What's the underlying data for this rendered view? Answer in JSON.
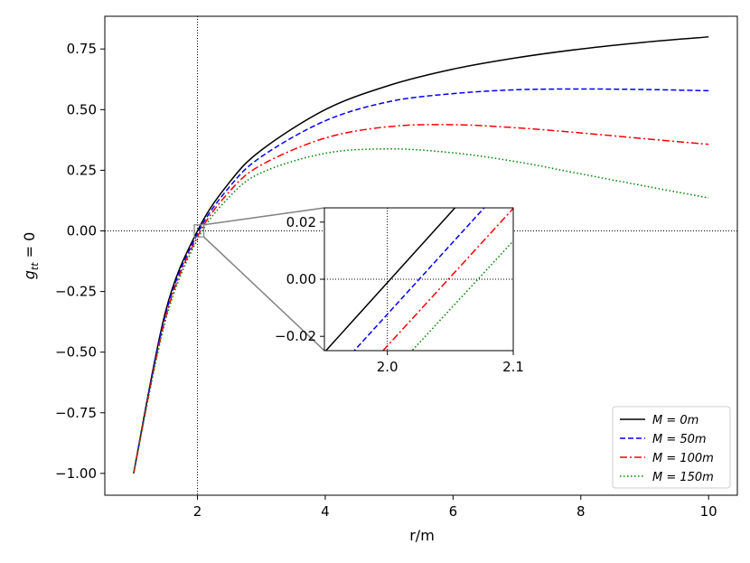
{
  "chart_data": {
    "type": "line",
    "title": "",
    "xlabel": "r/m",
    "ylabel": "g_tt = 0",
    "xlim": [
      0.55,
      10.45
    ],
    "ylim": [
      -1.09,
      0.885
    ],
    "xticks": [
      2,
      4,
      6,
      8,
      10
    ],
    "xtick_labels": [
      "2",
      "4",
      "6",
      "8",
      "10"
    ],
    "yticks": [
      -1.0,
      -0.75,
      -0.5,
      -0.25,
      0.0,
      0.25,
      0.5,
      0.75
    ],
    "ytick_labels": [
      "−1.00",
      "−0.75",
      "−0.50",
      "−0.25",
      "0.00",
      "0.25",
      "0.50",
      "0.75"
    ],
    "reference_lines": {
      "vertical_x": 2,
      "horizontal_y": 0
    },
    "legend_placement": "lower-right",
    "grid": false,
    "series": [
      {
        "name": "M = 0m",
        "color": "#000000",
        "style": "solid",
        "x": [
          1.0,
          1.5,
          2.0,
          2.5,
          3.0,
          4.0,
          5.0,
          6.0,
          7.0,
          8.0,
          9.0,
          10.0
        ],
        "y": [
          -1.0,
          -0.333,
          0.0,
          0.2,
          0.333,
          0.5,
          0.6,
          0.667,
          0.714,
          0.75,
          0.778,
          0.8
        ]
      },
      {
        "name": "M = 50m",
        "color": "#0000ff",
        "style": "dashed",
        "x": [
          1.0,
          1.5,
          2.0,
          2.5,
          3.0,
          4.0,
          5.0,
          6.0,
          7.0,
          8.0,
          9.0,
          10.0
        ],
        "y": [
          -1.0,
          -0.345,
          -0.012,
          0.181,
          0.306,
          0.454,
          0.533,
          0.566,
          0.582,
          0.585,
          0.583,
          0.578
        ]
      },
      {
        "name": "M = 100m",
        "color": "#ff0000",
        "style": "dashdot",
        "x": [
          1.0,
          1.5,
          2.0,
          2.5,
          3.0,
          4.0,
          5.0,
          6.0,
          7.0,
          8.0,
          9.0,
          10.0
        ],
        "y": [
          -1.0,
          -0.358,
          -0.024,
          0.162,
          0.272,
          0.383,
          0.43,
          0.438,
          0.425,
          0.404,
          0.38,
          0.357
        ]
      },
      {
        "name": "M = 150m",
        "color": "#008000",
        "style": "dotted",
        "x": [
          1.0,
          1.5,
          2.0,
          2.5,
          3.0,
          4.0,
          5.0,
          6.0,
          7.0,
          8.0,
          9.0,
          10.0
        ],
        "y": [
          -1.0,
          -0.37,
          -0.036,
          0.14,
          0.24,
          0.32,
          0.338,
          0.322,
          0.285,
          0.235,
          0.185,
          0.136
        ]
      }
    ],
    "inset": {
      "xlim": [
        1.95,
        2.1
      ],
      "ylim": [
        -0.025,
        0.025
      ],
      "xticks": [
        2.0,
        2.1
      ],
      "xtick_labels": [
        "2.0",
        "2.1"
      ],
      "yticks": [
        -0.02,
        0.0,
        0.02
      ],
      "ytick_labels": [
        "−0.02",
        "0.00",
        "0.02"
      ],
      "lines": [
        {
          "name": "M = 0m",
          "x": [
            1.95,
            2.1
          ],
          "y": [
            -0.0256,
            0.0476
          ]
        },
        {
          "name": "M = 50m",
          "x": [
            1.95,
            2.1
          ],
          "y": [
            -0.0365,
            0.0362
          ]
        },
        {
          "name": "M = 100m",
          "x": [
            1.95,
            2.1
          ],
          "y": [
            -0.0474,
            0.0248
          ]
        },
        {
          "name": "M = 150m",
          "x": [
            1.95,
            2.1
          ],
          "y": [
            -0.0583,
            0.0134
          ]
        }
      ]
    }
  }
}
